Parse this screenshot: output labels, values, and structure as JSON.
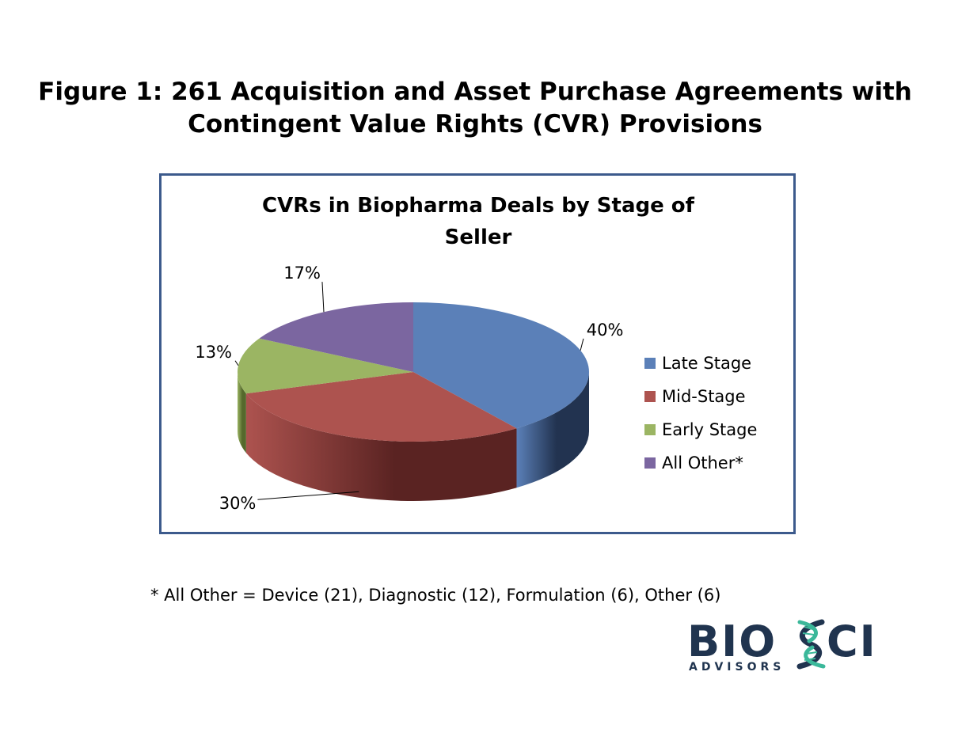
{
  "figure": {
    "title_line1": "Figure 1:  261 Acquisition and Asset Purchase Agreements with",
    "title_line2": "Contingent Value Rights (CVR) Provisions"
  },
  "chart_data": {
    "type": "pie",
    "title_line1": "CVRs in Biopharma Deals by Stage of",
    "title_line2": "Seller",
    "slices": [
      {
        "label": "Late Stage",
        "value": 40,
        "data_label": "40%",
        "color": "#5b80b8",
        "dark": "#223350"
      },
      {
        "label": "Mid-Stage",
        "value": 30,
        "data_label": "30%",
        "color": "#ad534f",
        "dark": "#5a2322"
      },
      {
        "label": "Early Stage",
        "value": 13,
        "data_label": "13%",
        "color": "#9bb563",
        "dark": "#55692c"
      },
      {
        "label": "All Other*",
        "value": 17,
        "data_label": "17%",
        "color": "#7b66a0",
        "dark": "#3f3159"
      }
    ],
    "legend_position": "right",
    "style": "3d"
  },
  "footnote": "* All Other = Device (21), Diagnostic (12), Formulation (6), Other (6)",
  "logo": {
    "left": "BIO",
    "right": "CI",
    "sub": "ADVISORS",
    "colors": {
      "navy": "#20344f",
      "teal": "#3bb89a"
    }
  }
}
